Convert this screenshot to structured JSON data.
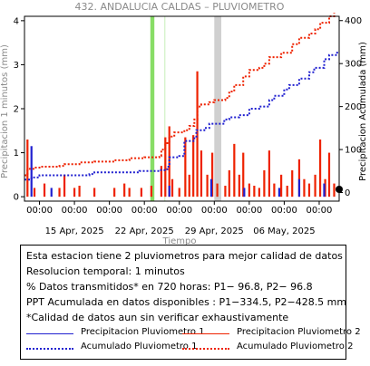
{
  "chart_data": {
    "type": "bar+line",
    "title": "432. ANDALUCIA CALDAS – PLUVIOMETRO",
    "xlabel": "Tiempo",
    "ylabel_left": "Precipitacion 1 minutos (mm)",
    "ylabel_right": "Precipitacion Acumulada (mm)",
    "ylim_left": [
      -0.1,
      4.1
    ],
    "ylim_right": [
      -20,
      410
    ],
    "yticks_left": [
      "0",
      "1",
      "2",
      "3",
      "4"
    ],
    "yticks_right": [
      "0",
      "100",
      "200",
      "300",
      "400"
    ],
    "x_range_days": [
      -1.5,
      30
    ],
    "xticks": [
      {
        "day": 0,
        "time": "00:00",
        "date": ""
      },
      {
        "day": 3.5,
        "time": "00:00",
        "date": "15 Apr, 2025"
      },
      {
        "day": 7,
        "time": "00:00",
        "date": ""
      },
      {
        "day": 10.5,
        "time": "00:00",
        "date": "22 Apr, 2025"
      },
      {
        "day": 14,
        "time": "00:00",
        "date": ""
      },
      {
        "day": 17.5,
        "time": "00:00",
        "date": "29 Apr, 2025"
      },
      {
        "day": 21,
        "time": "00:00",
        "date": ""
      },
      {
        "day": 24.5,
        "time": "00:00",
        "date": "06 May, 2025"
      },
      {
        "day": 28,
        "time": "00:00",
        "date": ""
      }
    ],
    "shaded_periods": [
      {
        "x": [
          11.1,
          11.5
        ],
        "color": "#88dd66"
      },
      {
        "x": [
          12.5,
          12.6
        ],
        "color": "#ccf0c0"
      },
      {
        "x": [
          17.5,
          18.2
        ],
        "color": "#d0d0d0"
      }
    ],
    "series": [
      {
        "name": "Precipitacion Pluviometro 1",
        "kind": "bar",
        "color": "#2020d0",
        "points": [
          [
            -0.8,
            1.15
          ],
          [
            1.2,
            0.2
          ],
          [
            13.0,
            0.25
          ],
          [
            17.2,
            0.4
          ],
          [
            20.5,
            0.2
          ],
          [
            24.0,
            0.2
          ],
          [
            26.0,
            0.4
          ],
          [
            28.5,
            0.3
          ]
        ]
      },
      {
        "name": "Precipitacion Pluviometro 2",
        "kind": "bar",
        "color": "#ee2200",
        "points": [
          [
            -1.2,
            1.3
          ],
          [
            -0.5,
            0.2
          ],
          [
            0.5,
            0.3
          ],
          [
            2.0,
            0.2
          ],
          [
            2.5,
            0.5
          ],
          [
            3.5,
            0.2
          ],
          [
            4.0,
            0.25
          ],
          [
            5.5,
            0.2
          ],
          [
            7.5,
            0.2
          ],
          [
            8.5,
            0.3
          ],
          [
            9.0,
            0.2
          ],
          [
            10.2,
            0.2
          ],
          [
            11.2,
            0.25
          ],
          [
            12.2,
            0.7
          ],
          [
            12.6,
            1.35
          ],
          [
            13.0,
            1.6
          ],
          [
            13.3,
            0.4
          ],
          [
            14.0,
            0.2
          ],
          [
            14.6,
            1.35
          ],
          [
            15.0,
            0.5
          ],
          [
            15.4,
            1.4
          ],
          [
            15.8,
            2.85
          ],
          [
            16.2,
            1.05
          ],
          [
            16.8,
            0.5
          ],
          [
            17.3,
            1.0
          ],
          [
            17.8,
            0.3
          ],
          [
            18.6,
            0.25
          ],
          [
            19.0,
            0.6
          ],
          [
            19.5,
            1.2
          ],
          [
            20.0,
            0.5
          ],
          [
            20.4,
            1.0
          ],
          [
            21.0,
            0.3
          ],
          [
            21.5,
            0.25
          ],
          [
            22.0,
            0.2
          ],
          [
            22.5,
            0.6
          ],
          [
            23.0,
            1.05
          ],
          [
            23.5,
            0.3
          ],
          [
            24.2,
            0.5
          ],
          [
            24.8,
            0.25
          ],
          [
            25.3,
            0.6
          ],
          [
            26.0,
            0.85
          ],
          [
            26.5,
            0.4
          ],
          [
            27.0,
            0.3
          ],
          [
            27.6,
            0.5
          ],
          [
            28.1,
            1.3
          ],
          [
            28.6,
            0.4
          ],
          [
            29.0,
            1.0
          ],
          [
            29.5,
            0.3
          ]
        ]
      },
      {
        "name": "Acumulado Pluviometro 1",
        "kind": "line",
        "axis": "right",
        "color": "#2020d0",
        "points": [
          [
            -1.5,
            30
          ],
          [
            -0.8,
            35
          ],
          [
            0,
            40
          ],
          [
            5,
            43
          ],
          [
            5.5,
            47
          ],
          [
            10,
            50
          ],
          [
            12.0,
            52
          ],
          [
            12.8,
            60
          ],
          [
            13.0,
            82
          ],
          [
            14.0,
            85
          ],
          [
            14.5,
            120
          ],
          [
            15.5,
            130
          ],
          [
            15.7,
            145
          ],
          [
            16.5,
            150
          ],
          [
            17.0,
            160
          ],
          [
            18.5,
            170
          ],
          [
            19.0,
            175
          ],
          [
            20.0,
            180
          ],
          [
            21.0,
            195
          ],
          [
            22.0,
            200
          ],
          [
            23.0,
            215
          ],
          [
            23.5,
            225
          ],
          [
            24.5,
            240
          ],
          [
            25.0,
            250
          ],
          [
            26.0,
            265
          ],
          [
            27.0,
            280
          ],
          [
            27.5,
            290
          ],
          [
            28.5,
            310
          ],
          [
            29.0,
            320
          ],
          [
            29.8,
            330
          ]
        ]
      },
      {
        "name": "Acumulado Pluviometro 2",
        "kind": "line",
        "axis": "right",
        "color": "#ee2200",
        "points": [
          [
            -1.5,
            40
          ],
          [
            -1.2,
            55
          ],
          [
            -0.5,
            58
          ],
          [
            0,
            60
          ],
          [
            2.0,
            62
          ],
          [
            2.5,
            66
          ],
          [
            4.0,
            70
          ],
          [
            5.5,
            72
          ],
          [
            7.5,
            75
          ],
          [
            9.0,
            80
          ],
          [
            10.5,
            82
          ],
          [
            12.0,
            85
          ],
          [
            12.2,
            100
          ],
          [
            12.6,
            115
          ],
          [
            13.0,
            130
          ],
          [
            13.5,
            140
          ],
          [
            14.5,
            145
          ],
          [
            15.0,
            155
          ],
          [
            15.5,
            170
          ],
          [
            15.8,
            200
          ],
          [
            16.2,
            205
          ],
          [
            17.0,
            210
          ],
          [
            17.5,
            215
          ],
          [
            18.6,
            220
          ],
          [
            19.0,
            235
          ],
          [
            19.5,
            250
          ],
          [
            20.4,
            270
          ],
          [
            21.0,
            285
          ],
          [
            22.0,
            290
          ],
          [
            22.5,
            300
          ],
          [
            23.0,
            315
          ],
          [
            24.2,
            325
          ],
          [
            25.3,
            345
          ],
          [
            26.0,
            360
          ],
          [
            27.0,
            370
          ],
          [
            27.6,
            380
          ],
          [
            28.1,
            395
          ],
          [
            29.0,
            410
          ],
          [
            29.5,
            418
          ]
        ]
      }
    ]
  },
  "info": {
    "lines": [
      "Esta estacion tiene 2 pluviometros para mejor calidad de datos",
      "Resolucion temporal: 1 minutos",
      "% Datos transmitidos* en 720 horas: P1− 96.8, P2− 96.8",
      "PPT Acumulada en datos disponibles : P1−334.5, P2−428.5 mm",
      "*Calidad de datos aun sin verificar exhaustivamente"
    ]
  },
  "legend": {
    "p1_bar": "Precipitacion Pluviometro 1",
    "p2_bar": "Precipitacion Pluviometro 2",
    "p1_acc": "Acumulado Pluviometro 1",
    "p2_acc": "Acumulado Pluviometro 2"
  }
}
